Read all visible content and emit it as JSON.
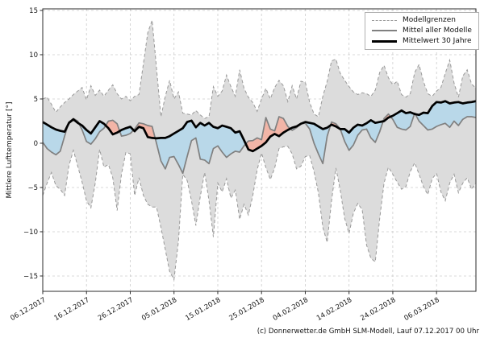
{
  "chart_data": {
    "type": "line",
    "title": "",
    "ylabel": "Mittlere Lufttemperatur [°]",
    "caption": "(c) Donnerwetter.de GmbH SLM-Modell, Lauf 07.12.2017 00 Uhr",
    "legend": [
      {
        "label": "Modellgrenzen",
        "style": "dashed",
        "color": "#999999"
      },
      {
        "label": "Mittel aller Modelle",
        "style": "solid",
        "color": "#808080"
      },
      {
        "label": "Mittelwert 30 Jahre",
        "style": "thick",
        "color": "#000000"
      }
    ],
    "legend_position": "upper right",
    "grid": true,
    "xlim": [
      0,
      99
    ],
    "ylim": [
      -16.73,
      15.18
    ],
    "x_tick_days": [
      0,
      10,
      20,
      30,
      40,
      50,
      60,
      70,
      80,
      90
    ],
    "x_tick_labels": [
      "06.12.2017",
      "16.12.2017",
      "26.12.2017",
      "05.01.2018",
      "15.01.2018",
      "25.01.2018",
      "04.02.2018",
      "14.02.2018",
      "24.02.2018",
      "06.03.2018"
    ],
    "y_ticks": [
      -15,
      -10,
      -5,
      0,
      5,
      10,
      15
    ],
    "y_tick_labels": [
      "−15",
      "−10",
      "−5",
      "0",
      "5",
      "10",
      "15"
    ],
    "colors": {
      "band_fill": "#dcdcdc",
      "band_edge": "#999999",
      "cold_fill": "#b9d8e9",
      "warm_fill": "#f2b5a7",
      "model_mean_line": "#808080",
      "mean_30y_line": "#000000",
      "grid": "#cccccc",
      "spine": "#2b2b2b",
      "text": "#151515"
    },
    "series": {
      "upper": [
        5.0,
        5.2,
        4.4,
        3.5,
        4.1,
        4.6,
        5.0,
        5.5,
        5.9,
        6.3,
        4.9,
        6.5,
        5.4,
        6.0,
        5.3,
        6.0,
        6.6,
        5.6,
        5.0,
        5.3,
        4.8,
        5.3,
        5.5,
        9.0,
        12.5,
        13.9,
        8.5,
        3.0,
        5.3,
        7.1,
        5.0,
        5.8,
        3.4,
        3.3,
        3.2,
        3.7,
        3.2,
        2.8,
        3.0,
        6.4,
        5.3,
        5.9,
        7.7,
        6.4,
        5.3,
        8.3,
        6.2,
        5.2,
        4.6,
        3.6,
        5.0,
        6.2,
        5.0,
        6.3,
        7.1,
        6.5,
        4.7,
        6.5,
        5.0,
        7.0,
        6.9,
        4.6,
        3.3,
        3.0,
        5.3,
        7.0,
        9.3,
        9.5,
        7.9,
        7.1,
        6.4,
        5.8,
        5.5,
        5.7,
        5.6,
        5.3,
        6.0,
        8.0,
        8.8,
        7.4,
        6.6,
        7.0,
        5.5,
        5.2,
        5.6,
        8.0,
        8.9,
        7.0,
        5.6,
        5.3,
        5.9,
        6.3,
        7.9,
        9.4,
        6.8,
        5.2,
        7.6,
        8.3,
        6.7,
        6.2
      ],
      "lower": [
        -5.9,
        -4.5,
        -3.3,
        -4.8,
        -5.2,
        -5.9,
        -2.5,
        -0.8,
        -2.6,
        -4.4,
        -6.5,
        -7.3,
        -4.5,
        -0.7,
        -2.7,
        -2.4,
        -3.9,
        -7.6,
        -3.5,
        -1.0,
        -1.2,
        -5.9,
        -3.9,
        -5.9,
        -6.9,
        -7.2,
        -7.2,
        -9.5,
        -12.0,
        -14.5,
        -15.4,
        -11.1,
        -3.5,
        -4.2,
        -6.5,
        -9.3,
        -6.0,
        -3.3,
        -6.5,
        -10.6,
        -4.5,
        -5.5,
        -4.0,
        -6.2,
        -5.3,
        -8.6,
        -6.9,
        -8.1,
        -5.9,
        -3.0,
        -1.1,
        -2.75,
        -4.1,
        -2.8,
        -0.6,
        -0.4,
        -0.35,
        -1.2,
        -2.9,
        -2.6,
        -1.5,
        -1.4,
        -3.2,
        -5.6,
        -9.5,
        -11.2,
        -6.5,
        -2.8,
        -5.3,
        -8.5,
        -10.2,
        -7.9,
        -6.8,
        -7.5,
        -11.5,
        -13.0,
        -13.4,
        -8.5,
        -4.5,
        -2.7,
        -3.5,
        -4.4,
        -5.2,
        -4.9,
        -3.2,
        -2.2,
        -3.5,
        -4.9,
        -5.8,
        -4.0,
        -3.4,
        -5.5,
        -6.5,
        -4.5,
        -3.5,
        -5.6,
        -4.5,
        -3.9,
        -5.2,
        -4.5
      ],
      "model_mean": [
        0.1,
        -0.6,
        -1.0,
        -1.3,
        -0.9,
        0.8,
        2.4,
        2.8,
        2.5,
        1.5,
        0.2,
        -0.1,
        0.5,
        1.3,
        1.7,
        2.5,
        2.6,
        2.2,
        0.8,
        0.9,
        1.1,
        1.6,
        2.3,
        2.2,
        2.0,
        1.9,
        0.0,
        -2.0,
        -2.9,
        -1.6,
        -1.5,
        -2.4,
        -3.4,
        -1.5,
        0.3,
        0.6,
        -1.8,
        -1.9,
        -2.3,
        -0.6,
        -0.3,
        -1.0,
        -1.6,
        -1.2,
        -0.9,
        -1.0,
        -0.3,
        0.25,
        0.3,
        0.6,
        0.4,
        2.9,
        1.6,
        1.4,
        3.0,
        2.8,
        1.9,
        1.45,
        1.75,
        2.2,
        2.25,
        1.6,
        0.0,
        -1.2,
        -2.3,
        0.8,
        2.4,
        2.2,
        1.6,
        0.2,
        -0.8,
        -0.2,
        0.9,
        1.5,
        1.6,
        0.6,
        0.1,
        1.3,
        2.8,
        3.3,
        2.7,
        1.8,
        1.6,
        1.5,
        1.9,
        3.4,
        2.5,
        2.0,
        1.5,
        1.6,
        1.9,
        2.1,
        2.25,
        1.8,
        2.5,
        2.0,
        2.7,
        3.0,
        3.0,
        2.9
      ],
      "mean_30y": [
        2.4,
        2.1,
        1.8,
        1.55,
        1.4,
        1.3,
        2.3,
        2.7,
        2.3,
        2.0,
        1.5,
        1.1,
        1.8,
        2.5,
        2.2,
        1.7,
        1.0,
        1.2,
        1.5,
        1.7,
        1.85,
        1.35,
        1.85,
        1.7,
        0.7,
        0.6,
        0.55,
        0.6,
        0.6,
        0.8,
        1.1,
        1.4,
        1.7,
        2.4,
        2.55,
        1.8,
        2.3,
        2.0,
        2.3,
        1.85,
        1.7,
        2.0,
        1.85,
        1.7,
        1.2,
        1.35,
        0.35,
        -0.7,
        -0.9,
        -0.6,
        -0.3,
        0.1,
        0.75,
        1.05,
        0.8,
        1.2,
        1.5,
        1.75,
        1.9,
        2.2,
        2.4,
        2.3,
        2.2,
        1.9,
        1.6,
        1.75,
        2.1,
        1.9,
        1.6,
        1.6,
        1.2,
        1.75,
        2.1,
        2.0,
        2.25,
        2.6,
        2.3,
        2.4,
        2.5,
        2.9,
        3.1,
        3.4,
        3.7,
        3.4,
        3.5,
        3.3,
        3.2,
        3.45,
        3.4,
        4.2,
        4.65,
        4.6,
        4.75,
        4.5,
        4.6,
        4.65,
        4.5,
        4.6,
        4.65,
        4.75
      ]
    }
  }
}
